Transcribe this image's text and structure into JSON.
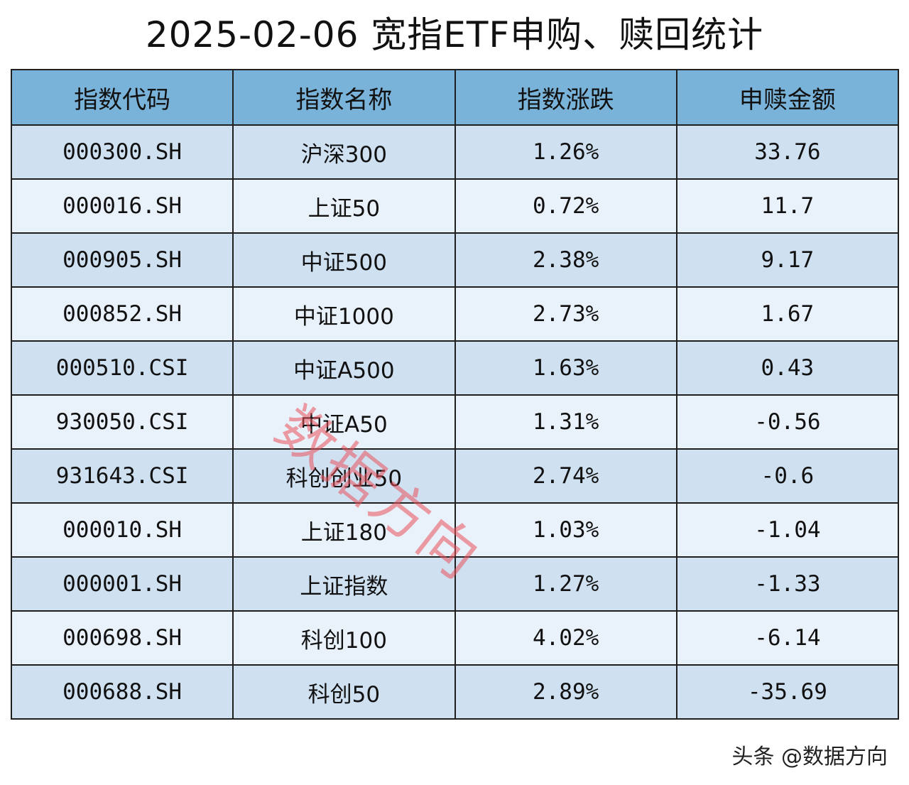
{
  "title": "2025-02-06 宽指ETF申购、赎回统计",
  "columns": [
    "指数代码",
    "指数名称",
    "指数涨跌",
    "申赎金额"
  ],
  "rows": [
    {
      "code": "000300.SH",
      "name": "沪深300",
      "change": "1.26%",
      "amount": "33.76"
    },
    {
      "code": "000016.SH",
      "name": "上证50",
      "change": "0.72%",
      "amount": "11.7"
    },
    {
      "code": "000905.SH",
      "name": "中证500",
      "change": "2.38%",
      "amount": "9.17"
    },
    {
      "code": "000852.SH",
      "name": "中证1000",
      "change": "2.73%",
      "amount": "1.67"
    },
    {
      "code": "000510.CSI",
      "name": "中证A500",
      "change": "1.63%",
      "amount": "0.43"
    },
    {
      "code": "930050.CSI",
      "name": "中证A50",
      "change": "1.31%",
      "amount": "-0.56"
    },
    {
      "code": "931643.CSI",
      "name": "科创创业50",
      "change": "2.74%",
      "amount": "-0.6"
    },
    {
      "code": "000010.SH",
      "name": "上证180",
      "change": "1.03%",
      "amount": "-1.04"
    },
    {
      "code": "000001.SH",
      "name": "上证指数",
      "change": "1.27%",
      "amount": "-1.33"
    },
    {
      "code": "000698.SH",
      "name": "科创100",
      "change": "4.02%",
      "amount": "-6.14"
    },
    {
      "code": "000688.SH",
      "name": "科创50",
      "change": "2.89%",
      "amount": "-35.69"
    }
  ],
  "watermark": "数据方向",
  "footer": "头条 @数据方向",
  "colors": {
    "header_bg": "#7ab3d9",
    "row_odd_bg": "#cfe0f1",
    "row_even_bg": "#e9f1fa",
    "watermark": "#eb505a"
  }
}
